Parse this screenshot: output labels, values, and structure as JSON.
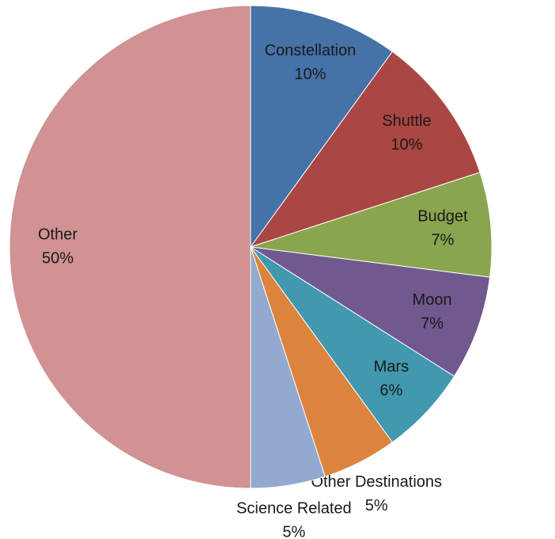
{
  "chart_data": {
    "type": "pie",
    "categories": [
      "Constellation",
      "Shuttle",
      "Budget",
      "Moon",
      "Mars",
      "Other Destinations",
      "Science Related",
      "Other"
    ],
    "values": [
      10,
      10,
      7,
      7,
      6,
      5,
      5,
      50
    ],
    "value_labels": [
      "10%",
      "10%",
      "7%",
      "7%",
      "6%",
      "5%",
      "5%",
      "50%"
    ],
    "colors": [
      "#4572a7",
      "#aa4643",
      "#89a54e",
      "#71588f",
      "#4198af",
      "#db843d",
      "#93a9cf",
      "#d09293"
    ]
  }
}
